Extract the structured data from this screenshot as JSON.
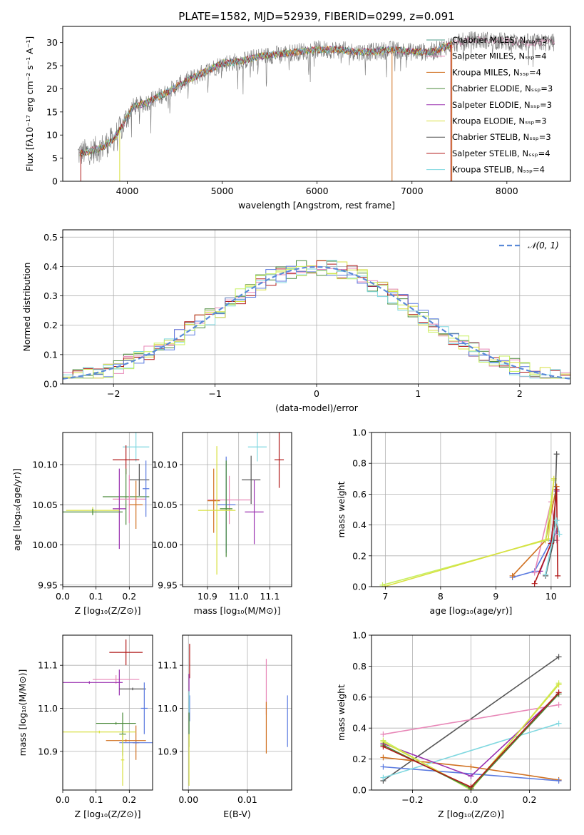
{
  "chart_data": [
    {
      "id": "spectrum",
      "type": "line",
      "title": "PLATE=1582, MJD=52939, FIBERID=0299, z=0.091",
      "xlabel": "wavelength [Angstrom, rest frame]",
      "ylabel": "Flux [fλ10⁻¹⁷ erg cm⁻² s⁻¹ A⁻¹]",
      "xlim": [
        3320,
        8670
      ],
      "ylim": [
        0,
        33.5
      ],
      "xticks": [
        4000,
        5000,
        6000,
        7000,
        8000
      ],
      "yticks": [
        0,
        5,
        10,
        15,
        20,
        25,
        30
      ],
      "grid": false,
      "legend_position": "top-right",
      "legend": [
        {
          "label": "Chabrier MILES, Nₛₛₚ=5",
          "color": "#4e9c8a"
        },
        {
          "label": "Salpeter MILES, Nₛₛₚ=4",
          "color": "#e888b8"
        },
        {
          "label": "Kroupa MILES, Nₛₛₚ=4",
          "color": "#d07020"
        },
        {
          "label": "Chabrier ELODIE, Nₛₛₚ=3",
          "color": "#4a8a3a"
        },
        {
          "label": "Salpeter ELODIE, Nₛₛₚ=3",
          "color": "#9a30b0"
        },
        {
          "label": "Kroupa ELODIE, Nₛₛₚ=3",
          "color": "#d8e040"
        },
        {
          "label": "Chabrier STELIB, Nₛₛₚ=3",
          "color": "#555555"
        },
        {
          "label": "Salpeter STELIB, Nₛₛₚ=4",
          "color": "#b01818"
        },
        {
          "label": "Kroupa STELIB, Nₛₛₚ=4",
          "color": "#80d8e0"
        }
      ],
      "continuum": {
        "x": [
          3500,
          3700,
          3850,
          3950,
          4050,
          4200,
          4400,
          4600,
          4800,
          5000,
          5200,
          5400,
          5600,
          5800,
          6000,
          6200,
          6400,
          6600,
          6800,
          7000,
          7200,
          7400,
          7600,
          7800,
          8200,
          8500
        ],
        "y": [
          6,
          7,
          9,
          12,
          16,
          17,
          19,
          21.5,
          23.5,
          25.5,
          26,
          27,
          27.5,
          28,
          28.5,
          28.5,
          28,
          28,
          28.5,
          28,
          28,
          29.5,
          30.5,
          30.5,
          30,
          30
        ]
      }
    },
    {
      "id": "residuals",
      "type": "line",
      "xlabel": "(data-model)/error",
      "ylabel": "Normed distribution",
      "xlim": [
        -2.5,
        2.5
      ],
      "ylim": [
        0,
        0.525
      ],
      "xticks": [
        -2,
        -1,
        0,
        1,
        2
      ],
      "yticks": [
        0.0,
        0.1,
        0.2,
        0.3,
        0.4,
        0.5
      ],
      "grid": true,
      "legend_position": "top-right",
      "legend": [
        {
          "label": "𝒩(0, 1)",
          "color": "#5a8ad8"
        }
      ],
      "bin_width": 0.1,
      "series_colors": [
        "#4a8a3a",
        "#e888b8",
        "#d8e040",
        "#b01818",
        "#80d8e0",
        "#5a7ae0",
        "#c8f060"
      ]
    },
    {
      "id": "age-vs-Z",
      "type": "scatter",
      "xlabel": "Z [log₁₀(Z/Z⊙)]",
      "ylabel": "age  [log₁₀(age/yr)]",
      "xlim": [
        0.0,
        0.27
      ],
      "ylim": [
        9.948,
        10.14
      ],
      "xticks": [
        0.0,
        0.1,
        0.2
      ],
      "yticks": [
        9.95,
        10.0,
        10.05,
        10.1
      ],
      "grid": true,
      "points": [
        {
          "x": 0.22,
          "y": 10.122,
          "xerr": 0.04,
          "yerr": 0.018,
          "color": "#80d8e0"
        },
        {
          "x": 0.19,
          "y": 10.106,
          "xerr": 0.04,
          "yerr": 0.018,
          "color": "#b01818"
        },
        {
          "x": 0.23,
          "y": 10.081,
          "xerr": 0.03,
          "yerr": 0.02,
          "color": "#555555"
        },
        {
          "x": 0.19,
          "y": 10.06,
          "xerr": 0.07,
          "yerr": 0.035,
          "color": "#4a8a3a"
        },
        {
          "x": 0.2,
          "y": 10.057,
          "xerr": 0.05,
          "yerr": 0.03,
          "color": "#e888b8"
        },
        {
          "x": 0.25,
          "y": 10.07,
          "xerr": 0.01,
          "yerr": 0.035,
          "color": "#5a7ae0"
        },
        {
          "x": 0.22,
          "y": 10.05,
          "xerr": 0.02,
          "yerr": 0.03,
          "color": "#d07020"
        },
        {
          "x": 0.17,
          "y": 10.045,
          "xerr": 0.02,
          "yerr": 0.05,
          "color": "#9a30b0"
        },
        {
          "x": 0.09,
          "y": 10.043,
          "xerr": 0.08,
          "yerr": 0.004,
          "color": "#d8e040"
        },
        {
          "x": 0.09,
          "y": 10.041,
          "xerr": 0.09,
          "yerr": 0.004,
          "color": "#4a8a3a"
        }
      ]
    },
    {
      "id": "age-vs-mass",
      "type": "scatter",
      "xlabel": "mass [log₁₀(M/M⊙)]",
      "xlim": [
        10.82,
        11.17
      ],
      "ylim": [
        9.948,
        10.14
      ],
      "xticks": [
        10.9,
        11.0,
        11.1
      ],
      "yticks": [
        9.95,
        10.0,
        10.05,
        10.1
      ],
      "grid": true,
      "points": [
        {
          "x": 11.06,
          "y": 10.122,
          "xerr": 0.03,
          "yerr": 0.018,
          "color": "#80d8e0"
        },
        {
          "x": 11.13,
          "y": 10.106,
          "xerr": 0.015,
          "yerr": 0.035,
          "color": "#b01818"
        },
        {
          "x": 11.04,
          "y": 10.081,
          "xerr": 0.03,
          "yerr": 0.03,
          "color": "#555555"
        },
        {
          "x": 10.97,
          "y": 10.056,
          "xerr": 0.07,
          "yerr": 0.03,
          "color": "#e888b8"
        },
        {
          "x": 10.92,
          "y": 10.055,
          "xerr": 0.02,
          "yerr": 0.04,
          "color": "#d07020"
        },
        {
          "x": 10.96,
          "y": 10.05,
          "xerr": 0.03,
          "yerr": 0.06,
          "color": "#5a7ae0"
        },
        {
          "x": 10.96,
          "y": 10.045,
          "xerr": 0.02,
          "yerr": 0.06,
          "color": "#4a8a3a"
        },
        {
          "x": 11.05,
          "y": 10.041,
          "xerr": 0.03,
          "yerr": 0.04,
          "color": "#9a30b0"
        },
        {
          "x": 10.93,
          "y": 10.043,
          "xerr": 0.06,
          "yerr": 0.08,
          "color": "#d8e040"
        }
      ]
    },
    {
      "id": "mass-weight-vs-age",
      "type": "line",
      "xlabel": "age  [log₁₀(age/yr)]",
      "ylabel": "mass weight",
      "xlim": [
        6.75,
        10.35
      ],
      "ylim": [
        0,
        1.0
      ],
      "xticks": [
        7,
        8,
        9,
        10
      ],
      "yticks": [
        0.0,
        0.2,
        0.4,
        0.6,
        0.8,
        1.0
      ],
      "grid": true,
      "series": [
        {
          "color": "#5a7ae0",
          "x": [
            9.3,
            9.7,
            10.0,
            10.1
          ],
          "y": [
            0.06,
            0.1,
            0.3,
            0.36
          ]
        },
        {
          "color": "#e888b8",
          "x": [
            9.7,
            10.0,
            10.1
          ],
          "y": [
            0.09,
            0.55,
            0.3
          ]
        },
        {
          "color": "#d07020",
          "x": [
            9.3,
            9.9,
            10.1
          ],
          "y": [
            0.07,
            0.3,
            0.65
          ]
        },
        {
          "color": "#9a30b0",
          "x": [
            9.8,
            10.0,
            10.1
          ],
          "y": [
            0.1,
            0.28,
            0.62
          ]
        },
        {
          "color": "#c8f060",
          "x": [
            6.95,
            9.9,
            10.05
          ],
          "y": [
            0.01,
            0.3,
            0.69
          ]
        },
        {
          "color": "#d8e040",
          "x": [
            6.98,
            9.95,
            10.05
          ],
          "y": [
            0.0,
            0.31,
            0.7
          ]
        },
        {
          "color": "#555555",
          "x": [
            9.9,
            10.05,
            10.1
          ],
          "y": [
            0.07,
            0.3,
            0.86
          ]
        },
        {
          "color": "#b01818",
          "x": [
            9.7,
            10.0,
            10.1,
            10.12
          ],
          "y": [
            0.02,
            0.28,
            0.63,
            0.07
          ]
        },
        {
          "color": "#80d8e0",
          "x": [
            9.9,
            10.1,
            10.15
          ],
          "y": [
            0.08,
            0.43,
            0.34
          ]
        }
      ]
    },
    {
      "id": "mass-vs-Z",
      "type": "scatter",
      "xlabel": "Z [log₁₀(Z/Z⊙)]",
      "ylabel": "mass [log₁₀(M/M⊙)]",
      "xlim": [
        0.0,
        0.27
      ],
      "ylim": [
        10.81,
        11.17
      ],
      "xticks": [
        0.0,
        0.1,
        0.2
      ],
      "yticks": [
        10.9,
        11.0,
        11.1
      ],
      "grid": true,
      "points": [
        {
          "x": 0.19,
          "y": 11.13,
          "xerr": 0.05,
          "yerr": 0.03,
          "color": "#b01818"
        },
        {
          "x": 0.16,
          "y": 11.067,
          "xerr": 0.07,
          "yerr": 0.01,
          "color": "#e888b8"
        },
        {
          "x": 0.08,
          "y": 11.06,
          "xerr": 0.08,
          "yerr": 0.003,
          "color": "#9a30b0"
        },
        {
          "x": 0.17,
          "y": 11.06,
          "xerr": 0.01,
          "yerr": 0.03,
          "color": "#9a30b0"
        },
        {
          "x": 0.21,
          "y": 11.045,
          "xerr": 0.04,
          "yerr": 0.003,
          "color": "#555555"
        },
        {
          "x": 0.245,
          "y": 11.0,
          "xerr": 0.01,
          "yerr": 0.06,
          "color": "#5a7ae0"
        },
        {
          "x": 0.16,
          "y": 10.965,
          "xerr": 0.06,
          "yerr": 0.003,
          "color": "#4a8a3a"
        },
        {
          "x": 0.18,
          "y": 10.94,
          "xerr": 0.01,
          "yerr": 0.05,
          "color": "#4a8a3a"
        },
        {
          "x": 0.19,
          "y": 10.925,
          "xerr": 0.06,
          "yerr": 0.003,
          "color": "#d07020"
        },
        {
          "x": 0.22,
          "y": 10.92,
          "xerr": 0.01,
          "yerr": 0.04,
          "color": "#d07020"
        },
        {
          "x": 0.22,
          "y": 10.92,
          "xerr": 0.05,
          "yerr": 0.003,
          "color": "#5a7ae0"
        },
        {
          "x": 0.11,
          "y": 10.945,
          "xerr": 0.11,
          "yerr": 0.003,
          "color": "#d8e040"
        },
        {
          "x": 0.18,
          "y": 10.88,
          "xerr": 0.005,
          "yerr": 0.06,
          "color": "#d8e040"
        }
      ]
    },
    {
      "id": "mass-vs-EBV",
      "type": "scatter",
      "xlabel": "E(B-V)",
      "xlim": [
        -0.001,
        0.0175
      ],
      "ylim": [
        10.81,
        11.17
      ],
      "xticks": [
        0.0,
        0.01
      ],
      "yticks": [
        10.9,
        11.0,
        11.1
      ],
      "grid": true,
      "points": [
        {
          "x": 0.0002,
          "y": 11.11,
          "xerr": 0,
          "yerr": 0.04,
          "color": "#b01818"
        },
        {
          "x": 0.0001,
          "y": 11.04,
          "xerr": 0,
          "yerr": 0.04,
          "color": "#9a30b0"
        },
        {
          "x": 0.0002,
          "y": 11.0,
          "xerr": 0,
          "yerr": 0.03,
          "color": "#5a7ae0"
        },
        {
          "x": 0.0001,
          "y": 10.99,
          "xerr": 0,
          "yerr": 0.05,
          "color": "#80d8e0"
        },
        {
          "x": 0.0001,
          "y": 10.95,
          "xerr": 0,
          "yerr": 0.04,
          "color": "#4a8a3a"
        },
        {
          "x": 0.0001,
          "y": 10.88,
          "xerr": 0,
          "yerr": 0.06,
          "color": "#d8e040"
        },
        {
          "x": 0.0132,
          "y": 11.05,
          "xerr": 0,
          "yerr": 0.065,
          "color": "#e888b8"
        },
        {
          "x": 0.0132,
          "y": 10.955,
          "xerr": 0,
          "yerr": 0.06,
          "color": "#d07020"
        },
        {
          "x": 0.0168,
          "y": 10.97,
          "xerr": 0,
          "yerr": 0.06,
          "color": "#5a7ae0"
        }
      ]
    },
    {
      "id": "mass-weight-vs-Z",
      "type": "line",
      "xlabel": "Z [log₁₀(Z/Z⊙)]",
      "ylabel": "mass weight",
      "xlim": [
        -0.34,
        0.34
      ],
      "ylim": [
        0,
        1.0
      ],
      "xticks": [
        -0.2,
        0.0,
        0.2
      ],
      "yticks": [
        0.0,
        0.2,
        0.4,
        0.6,
        0.8,
        1.0
      ],
      "grid": true,
      "series": [
        {
          "color": "#555555",
          "x": [
            -0.3,
            0.3
          ],
          "y": [
            0.06,
            0.86
          ]
        },
        {
          "color": "#e888b8",
          "x": [
            -0.3,
            0.3
          ],
          "y": [
            0.36,
            0.55
          ]
        },
        {
          "color": "#d07020",
          "x": [
            -0.3,
            0.0,
            0.3
          ],
          "y": [
            0.21,
            0.15,
            0.065
          ]
        },
        {
          "color": "#5a7ae0",
          "x": [
            -0.3,
            0.3
          ],
          "y": [
            0.15,
            0.06
          ]
        },
        {
          "color": "#80d8e0",
          "x": [
            -0.3,
            0.3
          ],
          "y": [
            0.08,
            0.43
          ]
        },
        {
          "color": "#9a30b0",
          "x": [
            -0.3,
            0.0,
            0.3
          ],
          "y": [
            0.3,
            0.09,
            0.62
          ]
        },
        {
          "color": "#c8f060",
          "x": [
            -0.3,
            0.0,
            0.3
          ],
          "y": [
            0.32,
            0.0,
            0.69
          ]
        },
        {
          "color": "#d8e040",
          "x": [
            -0.3,
            0.0,
            0.3
          ],
          "y": [
            0.31,
            0.01,
            0.68
          ]
        },
        {
          "color": "#4a8a3a",
          "x": [
            -0.3,
            0.0,
            0.3
          ],
          "y": [
            0.29,
            0.01,
            0.62
          ]
        },
        {
          "color": "#b01818",
          "x": [
            -0.3,
            0.0,
            0.3
          ],
          "y": [
            0.28,
            0.02,
            0.63
          ]
        }
      ]
    }
  ]
}
